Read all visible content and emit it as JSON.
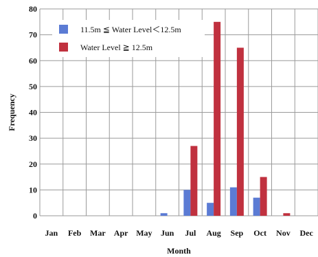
{
  "chart_data": {
    "type": "bar",
    "categories": [
      "Jan",
      "Feb",
      "Mar",
      "Apr",
      "May",
      "Jun",
      "Jul",
      "Aug",
      "Sep",
      "Oct",
      "Nov",
      "Dec"
    ],
    "series": [
      {
        "name": "11.5m ≦ Water Level＜12.5m",
        "color": "#5b7bd4",
        "values": [
          0,
          0,
          0,
          0,
          0,
          1,
          10,
          5,
          11,
          7,
          0,
          0
        ]
      },
      {
        "name": "Water Level ≧ 12.5m",
        "color": "#c0313f",
        "values": [
          0,
          0,
          0,
          0,
          0,
          0,
          27,
          75,
          65,
          15,
          1,
          0
        ]
      }
    ],
    "xlabel": "Month",
    "ylabel": "Frequency",
    "ylim": [
      0,
      80
    ],
    "yticks": [
      0,
      10,
      20,
      30,
      40,
      50,
      60,
      70,
      80
    ],
    "grid": true,
    "legend_position": "top-left"
  }
}
